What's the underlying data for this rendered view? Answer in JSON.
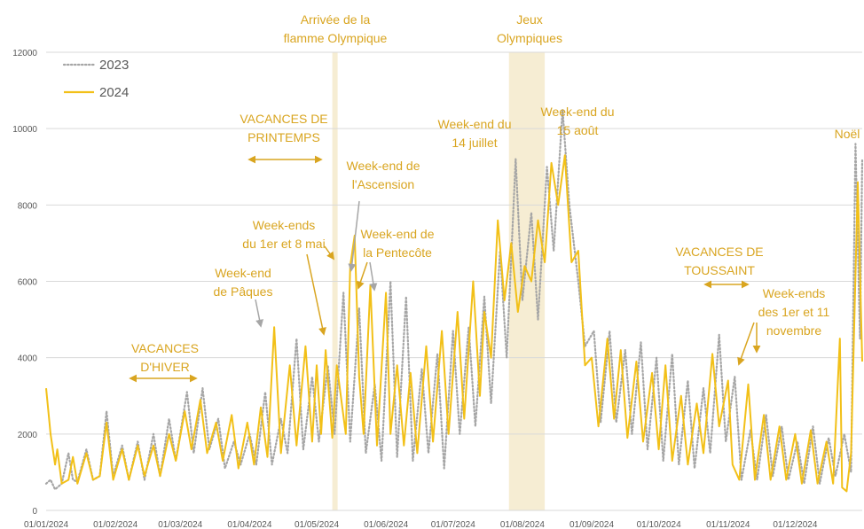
{
  "chart_data": {
    "type": "line",
    "title": "",
    "xlabel": "",
    "ylabel": "",
    "x_start": "2024-01-01",
    "ylim": [
      0,
      12000
    ],
    "y_ticks": [
      "0",
      "2000",
      "4000",
      "6000",
      "8000",
      "10000",
      "12000"
    ],
    "x_ticks": [
      {
        "date": "2024-01-01",
        "label": "01/01/2024"
      },
      {
        "date": "2024-02-01",
        "label": "01/02/2024"
      },
      {
        "date": "2024-03-01",
        "label": "01/03/2024"
      },
      {
        "date": "2024-04-01",
        "label": "01/04/2024"
      },
      {
        "date": "2024-05-01",
        "label": "01/05/2024"
      },
      {
        "date": "2024-06-01",
        "label": "01/06/2024"
      },
      {
        "date": "2024-07-01",
        "label": "01/07/2024"
      },
      {
        "date": "2024-08-01",
        "label": "01/08/2024"
      },
      {
        "date": "2024-09-01",
        "label": "01/09/2024"
      },
      {
        "date": "2024-10-01",
        "label": "01/10/2024"
      },
      {
        "date": "2024-11-01",
        "label": "01/11/2024"
      },
      {
        "date": "2024-12-01",
        "label": "01/12/2024"
      }
    ],
    "grid": "horizontal",
    "legend_position": "top-left",
    "series": [
      {
        "name": "2023",
        "style": "dotted",
        "color": "#a6a6a6",
        "points": [
          [
            "2024-01-01",
            700
          ],
          [
            "2024-01-03",
            800
          ],
          [
            "2024-01-05",
            550
          ],
          [
            "2024-01-08",
            700
          ],
          [
            "2024-01-11",
            1500
          ],
          [
            "2024-01-13",
            800
          ],
          [
            "2024-01-15",
            750
          ],
          [
            "2024-01-19",
            1600
          ],
          [
            "2024-01-22",
            800
          ],
          [
            "2024-01-25",
            900
          ],
          [
            "2024-01-28",
            2600
          ],
          [
            "2024-01-31",
            900
          ],
          [
            "2024-02-04",
            1700
          ],
          [
            "2024-02-07",
            800
          ],
          [
            "2024-02-11",
            1800
          ],
          [
            "2024-02-14",
            800
          ],
          [
            "2024-02-18",
            2000
          ],
          [
            "2024-02-21",
            900
          ],
          [
            "2024-02-25",
            2400
          ],
          [
            "2024-02-28",
            1300
          ],
          [
            "2024-03-04",
            3100
          ],
          [
            "2024-03-07",
            1500
          ],
          [
            "2024-03-11",
            3200
          ],
          [
            "2024-03-14",
            1600
          ],
          [
            "2024-03-18",
            2400
          ],
          [
            "2024-03-21",
            1100
          ],
          [
            "2024-03-25",
            1800
          ],
          [
            "2024-03-28",
            1200
          ],
          [
            "2024-04-01",
            2000
          ],
          [
            "2024-04-04",
            1200
          ],
          [
            "2024-04-08",
            3100
          ],
          [
            "2024-04-11",
            1200
          ],
          [
            "2024-04-15",
            2400
          ],
          [
            "2024-04-18",
            1500
          ],
          [
            "2024-04-22",
            4500
          ],
          [
            "2024-04-25",
            1600
          ],
          [
            "2024-04-29",
            3500
          ],
          [
            "2024-05-02",
            1800
          ],
          [
            "2024-05-06",
            3800
          ],
          [
            "2024-05-09",
            2000
          ],
          [
            "2024-05-13",
            5700
          ],
          [
            "2024-05-16",
            1800
          ],
          [
            "2024-05-20",
            5300
          ],
          [
            "2024-05-23",
            1500
          ],
          [
            "2024-05-27",
            3300
          ],
          [
            "2024-05-30",
            1300
          ],
          [
            "2024-06-03",
            6000
          ],
          [
            "2024-06-06",
            1400
          ],
          [
            "2024-06-10",
            5600
          ],
          [
            "2024-06-13",
            1300
          ],
          [
            "2024-06-17",
            3700
          ],
          [
            "2024-06-20",
            1500
          ],
          [
            "2024-06-24",
            4100
          ],
          [
            "2024-06-27",
            1100
          ],
          [
            "2024-07-01",
            4700
          ],
          [
            "2024-07-04",
            2000
          ],
          [
            "2024-07-08",
            4800
          ],
          [
            "2024-07-11",
            2200
          ],
          [
            "2024-07-15",
            5600
          ],
          [
            "2024-07-18",
            2800
          ],
          [
            "2024-07-22",
            6800
          ],
          [
            "2024-07-25",
            4000
          ],
          [
            "2024-07-29",
            9200
          ],
          [
            "2024-08-01",
            5500
          ],
          [
            "2024-08-05",
            7800
          ],
          [
            "2024-08-08",
            5000
          ],
          [
            "2024-08-12",
            9000
          ],
          [
            "2024-08-15",
            6800
          ],
          [
            "2024-08-19",
            10500
          ],
          [
            "2024-08-22",
            8000
          ],
          [
            "2024-08-26",
            6000
          ],
          [
            "2024-08-29",
            4300
          ],
          [
            "2024-09-02",
            4700
          ],
          [
            "2024-09-05",
            2300
          ],
          [
            "2024-09-09",
            4700
          ],
          [
            "2024-09-12",
            2300
          ],
          [
            "2024-09-16",
            4200
          ],
          [
            "2024-09-19",
            2000
          ],
          [
            "2024-09-23",
            4400
          ],
          [
            "2024-09-26",
            1600
          ],
          [
            "2024-09-30",
            4000
          ],
          [
            "2024-10-03",
            1300
          ],
          [
            "2024-10-07",
            4100
          ],
          [
            "2024-10-10",
            1200
          ],
          [
            "2024-10-14",
            3400
          ],
          [
            "2024-10-17",
            1100
          ],
          [
            "2024-10-21",
            3200
          ],
          [
            "2024-10-24",
            1500
          ],
          [
            "2024-10-28",
            4600
          ],
          [
            "2024-10-31",
            1800
          ],
          [
            "2024-11-04",
            3500
          ],
          [
            "2024-11-07",
            800
          ],
          [
            "2024-11-11",
            2100
          ],
          [
            "2024-11-14",
            800
          ],
          [
            "2024-11-18",
            2500
          ],
          [
            "2024-11-21",
            900
          ],
          [
            "2024-11-25",
            2200
          ],
          [
            "2024-11-28",
            800
          ],
          [
            "2024-12-02",
            1800
          ],
          [
            "2024-12-05",
            700
          ],
          [
            "2024-12-09",
            2200
          ],
          [
            "2024-12-12",
            700
          ],
          [
            "2024-12-16",
            1900
          ],
          [
            "2024-12-19",
            900
          ],
          [
            "2024-12-23",
            2000
          ],
          [
            "2024-12-26",
            1000
          ],
          [
            "2024-12-28",
            9600
          ],
          [
            "2024-12-30",
            4500
          ],
          [
            "2024-12-31",
            9200
          ]
        ]
      },
      {
        "name": "2024",
        "style": "solid",
        "color": "#f2c018",
        "points": [
          [
            "2024-01-01",
            3200
          ],
          [
            "2024-01-03",
            2000
          ],
          [
            "2024-01-05",
            1200
          ],
          [
            "2024-01-06",
            1600
          ],
          [
            "2024-01-08",
            700
          ],
          [
            "2024-01-11",
            800
          ],
          [
            "2024-01-13",
            1400
          ],
          [
            "2024-01-15",
            700
          ],
          [
            "2024-01-19",
            1500
          ],
          [
            "2024-01-22",
            800
          ],
          [
            "2024-01-25",
            900
          ],
          [
            "2024-01-28",
            2300
          ],
          [
            "2024-01-31",
            800
          ],
          [
            "2024-02-04",
            1600
          ],
          [
            "2024-02-07",
            800
          ],
          [
            "2024-02-11",
            1700
          ],
          [
            "2024-02-14",
            900
          ],
          [
            "2024-02-18",
            1700
          ],
          [
            "2024-02-21",
            900
          ],
          [
            "2024-02-25",
            2000
          ],
          [
            "2024-02-28",
            1300
          ],
          [
            "2024-03-03",
            2600
          ],
          [
            "2024-03-06",
            1600
          ],
          [
            "2024-03-10",
            2900
          ],
          [
            "2024-03-13",
            1500
          ],
          [
            "2024-03-17",
            2300
          ],
          [
            "2024-03-20",
            1300
          ],
          [
            "2024-03-24",
            2500
          ],
          [
            "2024-03-27",
            1100
          ],
          [
            "2024-03-31",
            2300
          ],
          [
            "2024-04-03",
            1200
          ],
          [
            "2024-04-06",
            2700
          ],
          [
            "2024-04-09",
            1400
          ],
          [
            "2024-04-12",
            4800
          ],
          [
            "2024-04-15",
            1500
          ],
          [
            "2024-04-19",
            3800
          ],
          [
            "2024-04-22",
            1700
          ],
          [
            "2024-04-26",
            4300
          ],
          [
            "2024-04-29",
            1800
          ],
          [
            "2024-05-01",
            3800
          ],
          [
            "2024-05-03",
            2000
          ],
          [
            "2024-05-05",
            4200
          ],
          [
            "2024-05-08",
            1900
          ],
          [
            "2024-05-10",
            3800
          ],
          [
            "2024-05-14",
            2000
          ],
          [
            "2024-05-16",
            6400
          ],
          [
            "2024-05-18",
            7200
          ],
          [
            "2024-05-20",
            3500
          ],
          [
            "2024-05-22",
            2000
          ],
          [
            "2024-05-25",
            5900
          ],
          [
            "2024-05-28",
            1700
          ],
          [
            "2024-06-01",
            5700
          ],
          [
            "2024-06-03",
            2000
          ],
          [
            "2024-06-06",
            3800
          ],
          [
            "2024-06-09",
            1700
          ],
          [
            "2024-06-12",
            3600
          ],
          [
            "2024-06-15",
            1500
          ],
          [
            "2024-06-19",
            4300
          ],
          [
            "2024-06-22",
            1800
          ],
          [
            "2024-06-26",
            4700
          ],
          [
            "2024-06-29",
            2000
          ],
          [
            "2024-07-03",
            5200
          ],
          [
            "2024-07-06",
            2400
          ],
          [
            "2024-07-10",
            6000
          ],
          [
            "2024-07-13",
            3000
          ],
          [
            "2024-07-15",
            5200
          ],
          [
            "2024-07-18",
            4000
          ],
          [
            "2024-07-21",
            7600
          ],
          [
            "2024-07-24",
            5500
          ],
          [
            "2024-07-27",
            7000
          ],
          [
            "2024-07-30",
            5200
          ],
          [
            "2024-08-02",
            6400
          ],
          [
            "2024-08-05",
            6000
          ],
          [
            "2024-08-08",
            7600
          ],
          [
            "2024-08-11",
            6500
          ],
          [
            "2024-08-14",
            9100
          ],
          [
            "2024-08-17",
            8000
          ],
          [
            "2024-08-20",
            9300
          ],
          [
            "2024-08-23",
            6500
          ],
          [
            "2024-08-26",
            6800
          ],
          [
            "2024-08-29",
            3800
          ],
          [
            "2024-09-01",
            4000
          ],
          [
            "2024-09-04",
            2200
          ],
          [
            "2024-09-08",
            4500
          ],
          [
            "2024-09-11",
            2400
          ],
          [
            "2024-09-14",
            4200
          ],
          [
            "2024-09-17",
            1900
          ],
          [
            "2024-09-21",
            3900
          ],
          [
            "2024-09-24",
            1800
          ],
          [
            "2024-09-28",
            3600
          ],
          [
            "2024-10-01",
            1600
          ],
          [
            "2024-10-04",
            3800
          ],
          [
            "2024-10-07",
            1300
          ],
          [
            "2024-10-11",
            3000
          ],
          [
            "2024-10-14",
            1200
          ],
          [
            "2024-10-18",
            2800
          ],
          [
            "2024-10-21",
            1500
          ],
          [
            "2024-10-25",
            4100
          ],
          [
            "2024-10-28",
            2200
          ],
          [
            "2024-11-01",
            3400
          ],
          [
            "2024-11-03",
            1200
          ],
          [
            "2024-11-06",
            800
          ],
          [
            "2024-11-10",
            3300
          ],
          [
            "2024-11-13",
            800
          ],
          [
            "2024-11-17",
            2500
          ],
          [
            "2024-11-20",
            800
          ],
          [
            "2024-11-24",
            2200
          ],
          [
            "2024-11-27",
            800
          ],
          [
            "2024-12-01",
            2000
          ],
          [
            "2024-12-04",
            700
          ],
          [
            "2024-12-08",
            2100
          ],
          [
            "2024-12-11",
            700
          ],
          [
            "2024-12-15",
            1800
          ],
          [
            "2024-12-18",
            700
          ],
          [
            "2024-12-21",
            4500
          ],
          [
            "2024-12-22",
            600
          ],
          [
            "2024-12-24",
            500
          ],
          [
            "2024-12-26",
            1500
          ],
          [
            "2024-12-29",
            8600
          ],
          [
            "2024-12-31",
            3900
          ]
        ]
      }
    ],
    "shaded_periods": [
      {
        "label": "Arrivée de la flamme Olympique",
        "start": "2024-05-08",
        "end": "2024-05-10",
        "color": "#f6edd3"
      },
      {
        "label": "Jeux Olympiques",
        "start": "2024-07-26",
        "end": "2024-08-11",
        "color": "#f6edd3"
      }
    ],
    "annotations": [
      {
        "id": "flamme",
        "lines": [
          "Arrivée de la",
          "flamme Olympique"
        ]
      },
      {
        "id": "jo",
        "lines": [
          "Jeux",
          "Olympiques"
        ]
      },
      {
        "id": "vac-printemps",
        "lines": [
          "VACANCES DE",
          "PRINTEMPS"
        ]
      },
      {
        "id": "ascension",
        "lines": [
          "Week-end de",
          "l'Ascension"
        ]
      },
      {
        "id": "we-mai",
        "lines": [
          "Week-ends",
          "du 1er et 8 mai"
        ]
      },
      {
        "id": "pentecote",
        "lines": [
          "Week-end de",
          "la Pentecôte"
        ]
      },
      {
        "id": "paques",
        "lines": [
          "Week-end",
          "de Pâques"
        ]
      },
      {
        "id": "vac-hiver",
        "lines": [
          "VACANCES",
          "D'HIVER"
        ]
      },
      {
        "id": "juillet",
        "lines": [
          "Week-end du",
          "14 juillet"
        ]
      },
      {
        "id": "aout",
        "lines": [
          "Week-end du",
          "15 août"
        ]
      },
      {
        "id": "noel",
        "lines": [
          "Noël"
        ]
      },
      {
        "id": "vac-toussaint",
        "lines": [
          "VACANCES DE",
          "TOUSSAINT"
        ]
      },
      {
        "id": "novembre",
        "lines": [
          "Week-ends",
          "des 1er et 11",
          "novembre"
        ]
      }
    ]
  }
}
